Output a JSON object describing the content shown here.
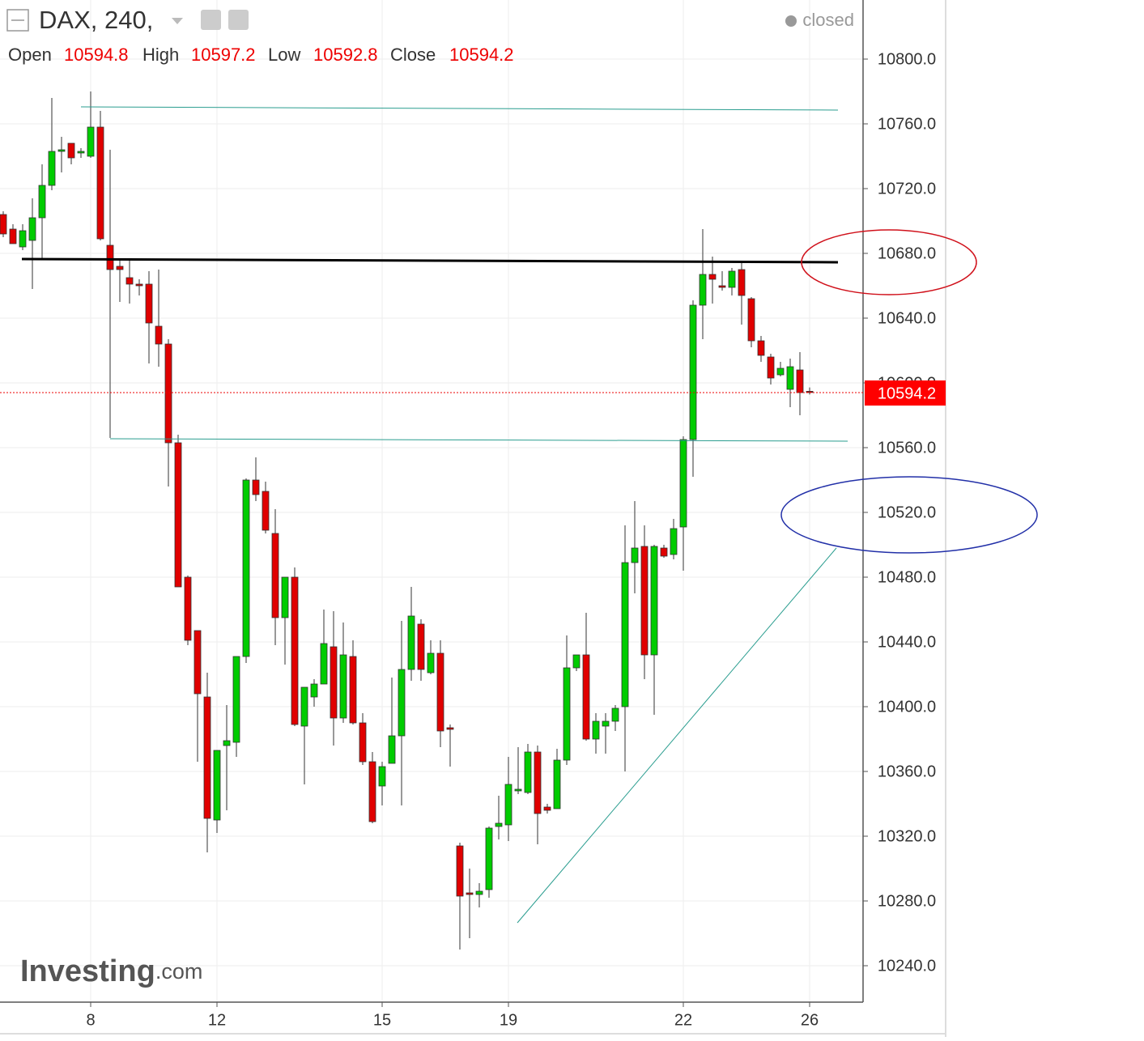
{
  "chart_data": {
    "type": "candlestick",
    "title": "DAX, 240,",
    "status": "closed",
    "logo": "Investing",
    "logo_suffix": ".com",
    "ohlc_labels": {
      "open": "Open",
      "high": "High",
      "low": "Low",
      "close": "Close"
    },
    "up_color": "#00cc00",
    "down_color": "#e00000",
    "grid": true,
    "categories": [
      null,
      null,
      null,
      null,
      null,
      null,
      null,
      null,
      null,
      "8",
      null,
      null,
      null,
      null,
      null,
      null,
      null,
      null,
      null,
      null,
      null,
      null,
      "12",
      null,
      null,
      null,
      null,
      null,
      null,
      null,
      null,
      null,
      null,
      null,
      null,
      null,
      null,
      null,
      null,
      "15",
      null,
      null,
      null,
      null,
      null,
      null,
      null,
      null,
      null,
      null,
      null,
      null,
      "19",
      null,
      null,
      null,
      null,
      null,
      null,
      null,
      null,
      null,
      null,
      null,
      null,
      null,
      null,
      null,
      null,
      null,
      "22",
      null,
      null,
      null,
      null,
      null,
      null,
      null,
      null,
      null,
      null,
      null,
      null,
      "26"
    ],
    "open": [
      10704,
      10695,
      10684,
      10688,
      10702,
      10722,
      10743,
      10748,
      10742,
      10740,
      10758,
      10685,
      10672,
      10665,
      10661,
      10661,
      10635,
      10624,
      10563,
      10480,
      10447,
      10406,
      10330,
      10376,
      10378,
      10431,
      10540,
      10533,
      10507,
      10455,
      10480,
      10388,
      10406,
      10414,
      10437,
      10393,
      10431,
      10390,
      10366,
      10351,
      10365,
      10382,
      10423,
      10451,
      10421,
      10433,
      10387,
      10314,
      10285,
      10284,
      10287,
      10326,
      10327,
      10348,
      10347,
      10372,
      10338,
      10337,
      10367,
      10424,
      10432,
      10380,
      10388,
      10391,
      10400,
      10489,
      10499,
      10432,
      10498,
      10494,
      10511,
      10565,
      10648,
      10667,
      10660,
      10659,
      10670,
      10652,
      10626,
      10616,
      10605,
      10596,
      10608,
      10594.8
    ],
    "high": [
      10706,
      10698,
      10698,
      10714,
      10735,
      10776,
      10752,
      10748,
      10745,
      10780,
      10768,
      10744,
      10676,
      10677,
      10664,
      10669,
      10670,
      10627,
      10568,
      10481,
      10447,
      10421,
      10373,
      10401,
      10431,
      10541,
      10554,
      10539,
      10522,
      10480,
      10486,
      10412,
      10417,
      10460,
      10459,
      10452,
      10441,
      10396,
      10372,
      10366,
      10418,
      10453,
      10474,
      10454,
      10441,
      10441,
      10389,
      10316,
      10300,
      10291,
      10326,
      10345,
      10369,
      10375,
      10377,
      10376,
      10340,
      10374,
      10444,
      10432,
      10458,
      10396,
      10396,
      10401,
      10512,
      10527,
      10512,
      10500,
      10500,
      10516,
      10567,
      10651,
      10695,
      10678,
      10669,
      10671,
      10675,
      10653,
      10629,
      10618,
      10613,
      10615,
      10619,
      10597.2
    ],
    "low": [
      10690,
      10686,
      10682,
      10658,
      10676,
      10719,
      10730,
      10735,
      10739,
      10739,
      10688,
      10566,
      10650,
      10649,
      10654,
      10612,
      10610,
      10536,
      10474,
      10438,
      10366,
      10310,
      10322,
      10336,
      10369,
      10427,
      10527,
      10507,
      10438,
      10426,
      10388,
      10352,
      10400,
      10418,
      10376,
      10390,
      10389,
      10364,
      10328,
      10339,
      10365,
      10339,
      10416,
      10416,
      10420,
      10375,
      10363,
      10250,
      10257,
      10276,
      10282,
      10318,
      10317,
      10346,
      10346,
      10315,
      10334,
      10337,
      10364,
      10422,
      10379,
      10371,
      10371,
      10385,
      10360,
      10470,
      10417,
      10395,
      10492,
      10491,
      10484,
      10542,
      10627,
      10649,
      10657,
      10654,
      10636,
      10622,
      10613,
      10599,
      10604,
      10585,
      10580,
      10592.8
    ],
    "close": [
      10692,
      10686,
      10694,
      10702,
      10722,
      10743,
      10744,
      10739,
      10743,
      10758,
      10689,
      10670,
      10670,
      10661,
      10660,
      10637,
      10624,
      10563,
      10474,
      10441,
      10408,
      10331,
      10373,
      10379,
      10431,
      10540,
      10531,
      10509,
      10455,
      10480,
      10389,
      10412,
      10414,
      10439,
      10393,
      10432,
      10390,
      10366,
      10329,
      10363,
      10382,
      10423,
      10456,
      10423,
      10433,
      10385,
      10386,
      10283,
      10284,
      10286,
      10325,
      10328,
      10352,
      10349,
      10372,
      10334,
      10336,
      10367,
      10424,
      10432,
      10380,
      10391,
      10391,
      10399,
      10489,
      10498,
      10432,
      10499,
      10493,
      10510,
      10565,
      10648,
      10667,
      10664,
      10659,
      10669,
      10654,
      10626,
      10617,
      10603,
      10609,
      10610,
      10594,
      10594.2
    ],
    "ylim": [
      10217.5,
      10836.5
    ],
    "yticks": [
      {
        "value": 10240,
        "label": "10240.0"
      },
      {
        "value": 10280,
        "label": "10280.0"
      },
      {
        "value": 10320,
        "label": "10320.0"
      },
      {
        "value": 10360,
        "label": "10360.0"
      },
      {
        "value": 10400,
        "label": "10400.0"
      },
      {
        "value": 10440,
        "label": "10440.0"
      },
      {
        "value": 10480,
        "label": "10480.0"
      },
      {
        "value": 10520,
        "label": "10520.0"
      },
      {
        "value": 10560,
        "label": "10560.0"
      },
      {
        "value": 10600,
        "label": "10600.0"
      },
      {
        "value": 10640,
        "label": "10640.0"
      },
      {
        "value": 10680,
        "label": "10680.0"
      },
      {
        "value": 10720,
        "label": "10720.0"
      },
      {
        "value": 10760,
        "label": "10760.0"
      },
      {
        "value": 10800,
        "label": "10800.0"
      }
    ]
  }
}
